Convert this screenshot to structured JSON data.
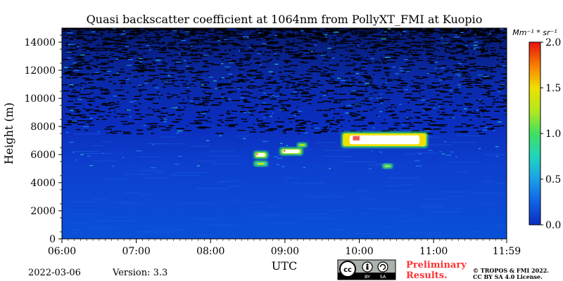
{
  "chart_data": {
    "type": "heatmap",
    "title": "Quasi backscatter coefficient at 1064nm from PollyXT_FMI at Kuopio",
    "xlabel": "UTC",
    "ylabel": "Height (m)",
    "x_tick_labels": [
      "06:00",
      "07:00",
      "08:00",
      "09:00",
      "10:00",
      "11:00",
      "11:59"
    ],
    "x_range_hours": [
      6.0,
      11.9833
    ],
    "y_ticks": [
      0,
      2000,
      4000,
      6000,
      8000,
      10000,
      12000,
      14000
    ],
    "y_tick_labels": [
      "0",
      "2000",
      "4000",
      "6000",
      "8000",
      "10000",
      "12000",
      "14000"
    ],
    "ylim": [
      0,
      15000
    ],
    "colorbar": {
      "label": "Mm⁻¹ * sr⁻¹",
      "range": [
        0.0,
        2.0
      ],
      "ticks": [
        0.0,
        0.5,
        1.0,
        1.5,
        2.0
      ],
      "tick_labels": [
        "0.0",
        "0.5",
        "1.0",
        "1.5",
        "2.0"
      ],
      "colormap": [
        "#0a2dbe",
        "#1060e6",
        "#1aa0e8",
        "#20d4c0",
        "#40e060",
        "#b0e820",
        "#f0e000",
        "#f88000",
        "#e81010"
      ]
    },
    "features": [
      {
        "type": "cloud",
        "x_start": 9.78,
        "x_end": 10.9,
        "y_bottom": 6600,
        "y_top": 7500,
        "intensity": 2.0
      },
      {
        "type": "cloud",
        "x_start": 8.6,
        "x_end": 8.75,
        "y_bottom": 5800,
        "y_top": 6150,
        "intensity": 1.6
      },
      {
        "type": "cloud",
        "x_start": 8.6,
        "x_end": 8.75,
        "y_bottom": 5250,
        "y_top": 5450,
        "intensity": 1.0
      },
      {
        "type": "cloud",
        "x_start": 8.95,
        "x_end": 9.22,
        "y_bottom": 6050,
        "y_top": 6400,
        "intensity": 1.6
      },
      {
        "type": "cloud",
        "x_start": 9.18,
        "x_end": 9.28,
        "y_bottom": 6600,
        "y_top": 6750,
        "intensity": 1.2
      },
      {
        "type": "cloud",
        "x_start": 10.33,
        "x_end": 10.43,
        "y_bottom": 5100,
        "y_top": 5250,
        "intensity": 1.0
      }
    ]
  },
  "footer": {
    "date": "2022-03-06",
    "version": "Version: 3.3",
    "preliminary": "Preliminary\nResults.",
    "copyright_line1": "© TROPOS & FMI 2022.",
    "copyright_line2": "CC BY SA 4.0 License.",
    "license_badge_labels": [
      "BY",
      "SA"
    ]
  },
  "colors": {
    "preliminary": "#ff3333",
    "background_low": "#0a2dbe",
    "noise_high": "#000000"
  }
}
